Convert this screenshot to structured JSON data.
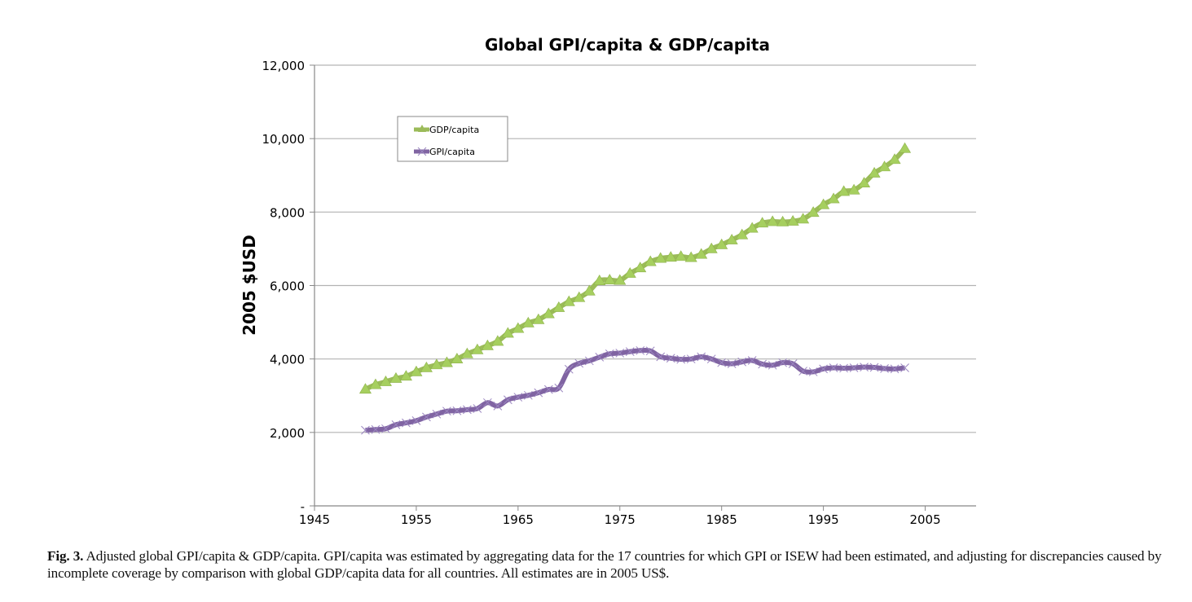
{
  "chart_data": {
    "type": "line",
    "title": "Global GPI/capita & GDP/capita",
    "xlabel": "",
    "ylabel": "2005 $USD",
    "xlim": [
      1945,
      2010
    ],
    "ylim": [
      0,
      12000
    ],
    "x_ticks": [
      1945,
      1955,
      1965,
      1975,
      1985,
      1995,
      2005
    ],
    "y_ticks": [
      0,
      2000,
      4000,
      6000,
      8000,
      10000,
      12000
    ],
    "y_tick_labels": [
      "-",
      "2,000",
      "4,000",
      "6,000",
      "8,000",
      "10,000",
      "12,000"
    ],
    "grid": "horizontal",
    "legend_position": "top-left",
    "x": [
      1950,
      1951,
      1952,
      1953,
      1954,
      1955,
      1956,
      1957,
      1958,
      1959,
      1960,
      1961,
      1962,
      1963,
      1964,
      1965,
      1966,
      1967,
      1968,
      1969,
      1970,
      1971,
      1972,
      1973,
      1974,
      1975,
      1976,
      1977,
      1978,
      1979,
      1980,
      1981,
      1982,
      1983,
      1984,
      1985,
      1986,
      1987,
      1988,
      1989,
      1990,
      1991,
      1992,
      1993,
      1994,
      1995,
      1996,
      1997,
      1998,
      1999,
      2000,
      2001,
      2002,
      2003
    ],
    "series": [
      {
        "name": "GDP/capita",
        "color": "#9bbb59",
        "marker": "triangle",
        "values": [
          3175,
          3300,
          3380,
          3470,
          3530,
          3650,
          3760,
          3840,
          3900,
          4000,
          4140,
          4250,
          4360,
          4480,
          4700,
          4830,
          4980,
          5070,
          5230,
          5400,
          5560,
          5670,
          5850,
          6130,
          6150,
          6140,
          6330,
          6480,
          6650,
          6740,
          6770,
          6790,
          6760,
          6850,
          7000,
          7110,
          7240,
          7380,
          7560,
          7700,
          7740,
          7730,
          7750,
          7810,
          7990,
          8200,
          8360,
          8560,
          8600,
          8790,
          9060,
          9230,
          9430,
          9730
        ]
      },
      {
        "name": "GPI/capita",
        "color": "#8064a2",
        "marker": "x",
        "values": [
          2060,
          2080,
          2100,
          2210,
          2260,
          2320,
          2420,
          2500,
          2580,
          2590,
          2620,
          2650,
          2810,
          2720,
          2890,
          2960,
          3010,
          3080,
          3170,
          3210,
          3720,
          3880,
          3950,
          4050,
          4140,
          4160,
          4200,
          4230,
          4220,
          4060,
          4020,
          3990,
          4000,
          4060,
          4000,
          3900,
          3870,
          3920,
          3960,
          3860,
          3830,
          3900,
          3870,
          3670,
          3650,
          3730,
          3760,
          3750,
          3760,
          3780,
          3770,
          3740,
          3730,
          3760
        ]
      }
    ]
  },
  "caption": {
    "label": "Fig. 3.",
    "text": " Adjusted global GPI/capita & GDP/capita. GPI/capita was estimated by aggregating data for the 17 countries for which GPI or ISEW had been estimated, and adjusting for discrepancies caused by incomplete coverage by comparison with global GDP/capita data for all countries. All estimates are in 2005 US$."
  }
}
